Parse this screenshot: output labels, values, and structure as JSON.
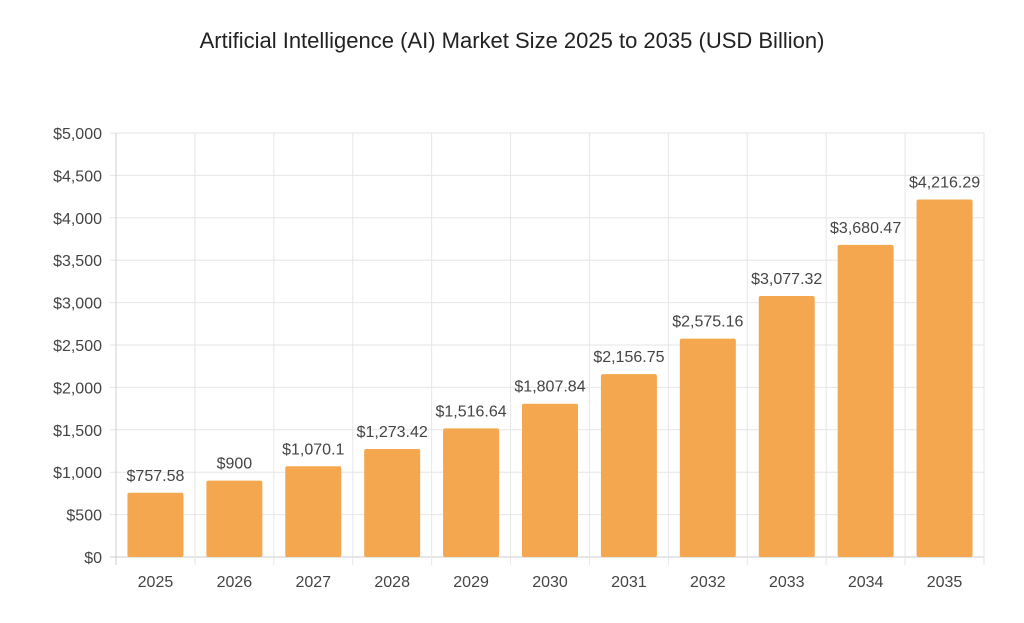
{
  "chart_data": {
    "type": "bar",
    "title": "Artificial Intelligence (AI) Market Size 2025 to 2035 (USD Billion)",
    "xlabel": "",
    "ylabel": "",
    "categories": [
      "2025",
      "2026",
      "2027",
      "2028",
      "2029",
      "2030",
      "2031",
      "2032",
      "2033",
      "2034",
      "2035"
    ],
    "values": [
      757.58,
      900,
      1070.1,
      1273.42,
      1516.64,
      1807.84,
      2156.75,
      2575.16,
      3077.32,
      3680.47,
      4216.29
    ],
    "data_labels": [
      "$757.58",
      "$900",
      "$1,070.1",
      "$1,273.42",
      "$1,516.64",
      "$1,807.84",
      "$2,156.75",
      "$2,575.16",
      "$3,077.32",
      "$3,680.47",
      "$4,216.29"
    ],
    "ylim": [
      0,
      5000
    ],
    "yticks": [
      0,
      500,
      1000,
      1500,
      2000,
      2500,
      3000,
      3500,
      4000,
      4500,
      5000
    ],
    "ytick_labels": [
      "$0",
      "$500",
      "$1,000",
      "$1,500",
      "$2,000",
      "$2,500",
      "$3,000",
      "$3,500",
      "$4,000",
      "$4,500",
      "$5,000"
    ],
    "grid": true,
    "legend": "none",
    "colors": {
      "bar": "#F5A74F",
      "grid": "#e6e6e6",
      "axis": "#cccccc",
      "text": "#444444",
      "title": "#222222"
    }
  }
}
